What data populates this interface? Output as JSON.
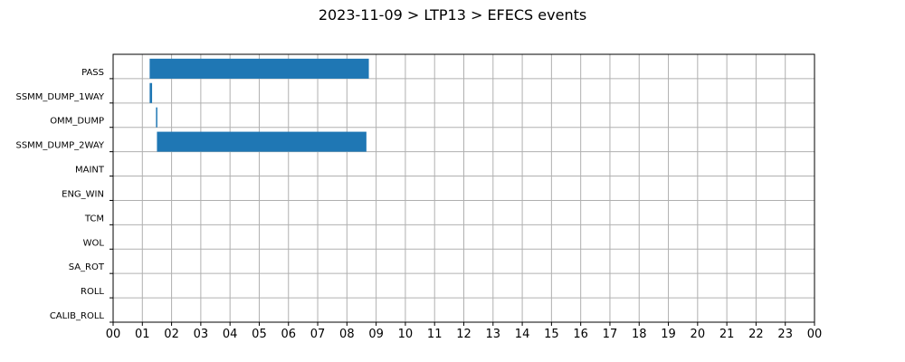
{
  "chart_data": {
    "type": "bar",
    "orientation": "horizontal",
    "title": "2023-11-09 > LTP13 > EFECS events",
    "xlabel": "",
    "ylabel": "",
    "x_unit": "hour of day",
    "xlim": [
      0,
      24
    ],
    "x_ticks": [
      "00",
      "01",
      "02",
      "03",
      "04",
      "05",
      "06",
      "07",
      "08",
      "09",
      "10",
      "11",
      "12",
      "13",
      "14",
      "15",
      "16",
      "17",
      "18",
      "19",
      "20",
      "21",
      "22",
      "23",
      "00"
    ],
    "grid": true,
    "categories": [
      "PASS",
      "SSMM_DUMP_1WAY",
      "OMM_DUMP",
      "SSMM_DUMP_2WAY",
      "MAINT",
      "ENG_WIN",
      "TCM",
      "WOL",
      "SA_ROT",
      "ROLL",
      "CALIB_ROLL"
    ],
    "events": [
      {
        "category": "PASS",
        "start": "01:15",
        "end": "08:45"
      },
      {
        "category": "SSMM_DUMP_1WAY",
        "start": "01:15",
        "end": "01:20"
      },
      {
        "category": "OMM_DUMP",
        "start": "01:28",
        "end": "01:30"
      },
      {
        "category": "SSMM_DUMP_2WAY",
        "start": "01:30",
        "end": "08:40"
      }
    ],
    "colors": {
      "bar": "#1f77b4",
      "grid": "#b0b0b0",
      "axis": "#000000"
    }
  }
}
